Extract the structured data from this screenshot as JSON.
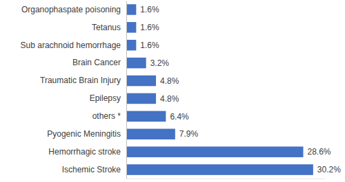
{
  "chart_data": {
    "type": "bar",
    "orientation": "horizontal",
    "categories": [
      "Organophaspate poisoning",
      "Tetanus",
      "Sub arachnoid hemorrhage",
      "Brain Cancer",
      "Traumatic Brain Injury",
      "Epilepsy",
      "others *",
      "Pyogenic Meningitis",
      "Hemorrhagic stroke",
      "Ischemic Stroke"
    ],
    "values": [
      1.6,
      1.6,
      1.6,
      3.2,
      4.8,
      4.8,
      6.4,
      7.9,
      28.6,
      30.2
    ],
    "value_labels": [
      "1.6%",
      "1.6%",
      "1.6%",
      "3.2%",
      "4.8%",
      "4.8%",
      "6.4%",
      "7.9%",
      "28.6%",
      "30.2%"
    ],
    "data_labels": true,
    "color": "#4472c4",
    "xlim": [
      0,
      32
    ],
    "tick_labels": "y",
    "grid": false
  }
}
